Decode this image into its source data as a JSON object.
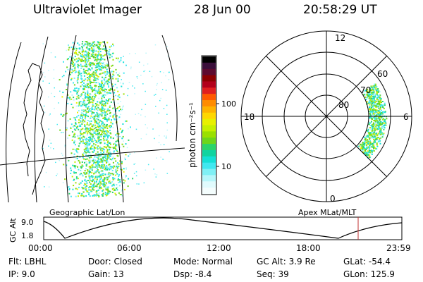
{
  "header": {
    "instrument": "Ultraviolet Imager",
    "date": "28 Jun 00",
    "time": "20:58:29 UT"
  },
  "geo_panel": {
    "label": "Geographic Lat/Lon"
  },
  "colorbar": {
    "unit_label": "photon cm⁻²s⁻¹",
    "tick_labels": [
      "100",
      "10"
    ],
    "colors": [
      "#000000",
      "#3a0f3a",
      "#5c0a2e",
      "#8b0000",
      "#b2001a",
      "#e01f1f",
      "#ff5a00",
      "#ff8c00",
      "#ffb300",
      "#ffd700",
      "#e8f000",
      "#c6f000",
      "#9ae000",
      "#6dd61a",
      "#2bd46a",
      "#10d4a0",
      "#14e0d6",
      "#40e8f0",
      "#7ff0f5",
      "#b6f6fa",
      "#e0fbfd",
      "#f4fdfd"
    ]
  },
  "polar_panel": {
    "label": "Apex MLat/MLT",
    "lat_labels": [
      "80",
      "70",
      "60"
    ],
    "mlt_labels": {
      "top": "12",
      "left": "18",
      "right": "6",
      "bottom": "0"
    }
  },
  "timeline": {
    "ylabel": "GC Alt",
    "y_ticks": [
      "9.0",
      "1.8"
    ],
    "x_ticks": [
      "00:00",
      "06:00",
      "12:00",
      "18:00",
      "23:59"
    ],
    "marker_color": "#c03030"
  },
  "info": {
    "flt": "Flt: LBHL",
    "ip": "IP:  9.0",
    "door": "Door: Closed",
    "gain": "Gain: 13",
    "mode": "Mode: Normal",
    "dsp": "Dsp:    -8.4",
    "gcalt": "GC Alt: 3.9 Re",
    "seq": "Seq: 39",
    "glat": "GLat:  -54.4",
    "glon": "GLon: 125.9"
  }
}
